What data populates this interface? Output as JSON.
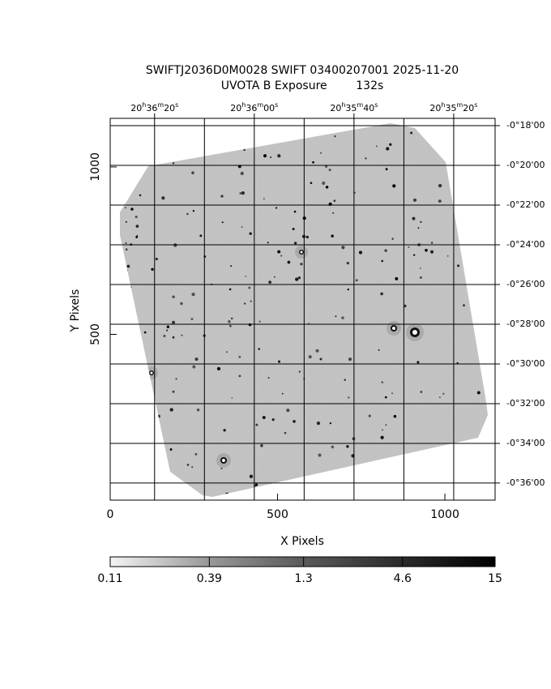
{
  "chart_data": {
    "type": "image",
    "title": "SWIFTJ2036D0M0028 SWIFT 03400207001 2025-11-20",
    "subtitle": "UVOTA B Exposure        132s",
    "x_label": "X Pixels",
    "y_label": "Y Pixels",
    "xlim": [
      0,
      1150
    ],
    "xticks": [
      0,
      500,
      1000
    ],
    "ylim": [
      5,
      1145
    ],
    "yticks": [
      500,
      1000
    ],
    "ra_lim": [
      73588.9,
      73511.7
    ],
    "ra_ticks": [
      {
        "value": 73580,
        "label": "20h36m20s"
      },
      {
        "value": 73560,
        "label": "20h36m00s"
      },
      {
        "value": 73540,
        "label": "20h35m40s"
      },
      {
        "value": 73520,
        "label": "20h35m20s"
      }
    ],
    "ra_grid": [
      73580,
      73570,
      73560,
      73550,
      73540,
      73530,
      73520
    ],
    "dec_lim": [
      -17.63,
      -36.86
    ],
    "dec_ticks": [
      {
        "value": -18,
        "label": "-0°18'00"
      },
      {
        "value": -20,
        "label": "-0°20'00"
      },
      {
        "value": -22,
        "label": "-0°22'00"
      },
      {
        "value": -24,
        "label": "-0°24'00"
      },
      {
        "value": -26,
        "label": "-0°26'00"
      },
      {
        "value": -28,
        "label": "-0°28'00"
      },
      {
        "value": -30,
        "label": "-0°30'00"
      },
      {
        "value": -32,
        "label": "-0°32'00"
      },
      {
        "value": -34,
        "label": "-0°34'00"
      },
      {
        "value": -36,
        "label": "-0°36'00"
      }
    ],
    "grid": true,
    "colorbar": {
      "log": true,
      "lim": [
        0.11,
        15
      ],
      "ticks": [
        0.11,
        0.39,
        1.3,
        4.6,
        15
      ]
    }
  }
}
